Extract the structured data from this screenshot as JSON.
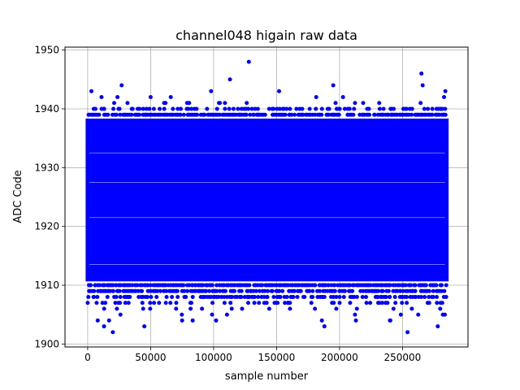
{
  "chart_data": {
    "type": "scatter",
    "title": "channel048 higain raw data",
    "xlabel": "sample number",
    "ylabel": "ADC Code",
    "xlim": [
      -18000,
      302000
    ],
    "ylim": [
      1899.5,
      1950.5
    ],
    "xticks": [
      0,
      50000,
      100000,
      150000,
      200000,
      250000
    ],
    "yticks": [
      1900,
      1910,
      1920,
      1930,
      1940,
      1950
    ],
    "xtick_labels": [
      "0",
      "50000",
      "100000",
      "150000",
      "200000",
      "250000"
    ],
    "ytick_labels": [
      "1900",
      "1910",
      "1920",
      "1930",
      "1940",
      "1950"
    ],
    "grid": true,
    "marker_color": "#0000ff",
    "x_range": [
      0,
      285000
    ],
    "dense_band": [
      1911,
      1938
    ],
    "outliers": [
      {
        "x": 3000,
        "y": 1943
      },
      {
        "x": 8000,
        "y": 1904
      },
      {
        "x": 11000,
        "y": 1942
      },
      {
        "x": 13000,
        "y": 1903
      },
      {
        "x": 17000,
        "y": 1904
      },
      {
        "x": 20000,
        "y": 1902
      },
      {
        "x": 27000,
        "y": 1944
      },
      {
        "x": 45000,
        "y": 1903
      },
      {
        "x": 50000,
        "y": 1942
      },
      {
        "x": 66000,
        "y": 1942
      },
      {
        "x": 75000,
        "y": 1904
      },
      {
        "x": 98000,
        "y": 1943
      },
      {
        "x": 102000,
        "y": 1904
      },
      {
        "x": 113000,
        "y": 1945
      },
      {
        "x": 128000,
        "y": 1948
      },
      {
        "x": 152000,
        "y": 1943
      },
      {
        "x": 186000,
        "y": 1904
      },
      {
        "x": 188000,
        "y": 1903
      },
      {
        "x": 195000,
        "y": 1944
      },
      {
        "x": 213000,
        "y": 1904
      },
      {
        "x": 240000,
        "y": 1904
      },
      {
        "x": 254000,
        "y": 1902
      },
      {
        "x": 265000,
        "y": 1946
      },
      {
        "x": 266000,
        "y": 1944
      },
      {
        "x": 278000,
        "y": 1903
      },
      {
        "x": 284000,
        "y": 1943
      }
    ]
  }
}
